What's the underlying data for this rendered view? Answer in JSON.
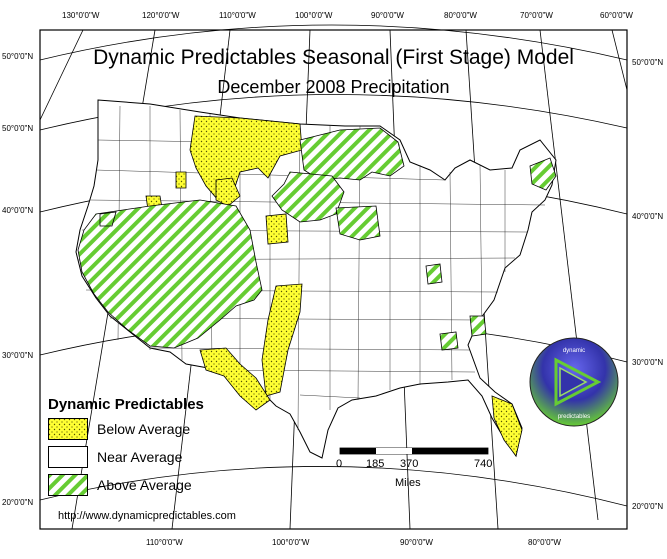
{
  "map": {
    "title": "Dynamic Predictables Seasonal (First Stage) Model",
    "subtitle": "December 2008 Precipitation",
    "url": "http://www.dynamicpredictables.com"
  },
  "legend": {
    "title": "Dynamic Predictables",
    "items": [
      {
        "label": "Below Average",
        "color": "#ffff33",
        "pattern": "dots"
      },
      {
        "label": "Near Average",
        "color": "#ffffff",
        "pattern": "none"
      },
      {
        "label": "Above Average",
        "color": "#66cc33",
        "pattern": "diagonal-hatch"
      }
    ]
  },
  "scale_bar": {
    "ticks": [
      "0",
      "185",
      "370",
      "740"
    ],
    "unit": "Miles"
  },
  "graticule": {
    "top": [
      "130°0'0\"W",
      "120°0'0\"W",
      "110°0'0\"W",
      "100°0'0\"W",
      "90°0'0\"W",
      "80°0'0\"W",
      "70°0'0\"W",
      "60°0'0\"W"
    ],
    "bottom": [
      "110°0'0\"W",
      "100°0'0\"W",
      "90°0'0\"W",
      "80°0'0\"W"
    ],
    "left": [
      "50°0'0\"N",
      "50°0'0\"N",
      "40°0'0\"N",
      "30°0'0\"N",
      "20°0'0\"N"
    ],
    "right": [
      "50°0'0\"N",
      "40°0'0\"N",
      "30°0'0\"N",
      "20°0'0\"N"
    ]
  },
  "logo": {
    "icon": "play-triangle-logo-icon",
    "text_top": "dynamic",
    "text_bottom": "predictables"
  },
  "colors": {
    "below": "#ffff33",
    "above_fill": "#ffffff",
    "above_stripe": "#66cc33",
    "logo_gradient_top": "#3333cc",
    "logo_gradient_bottom": "#66cc33"
  }
}
